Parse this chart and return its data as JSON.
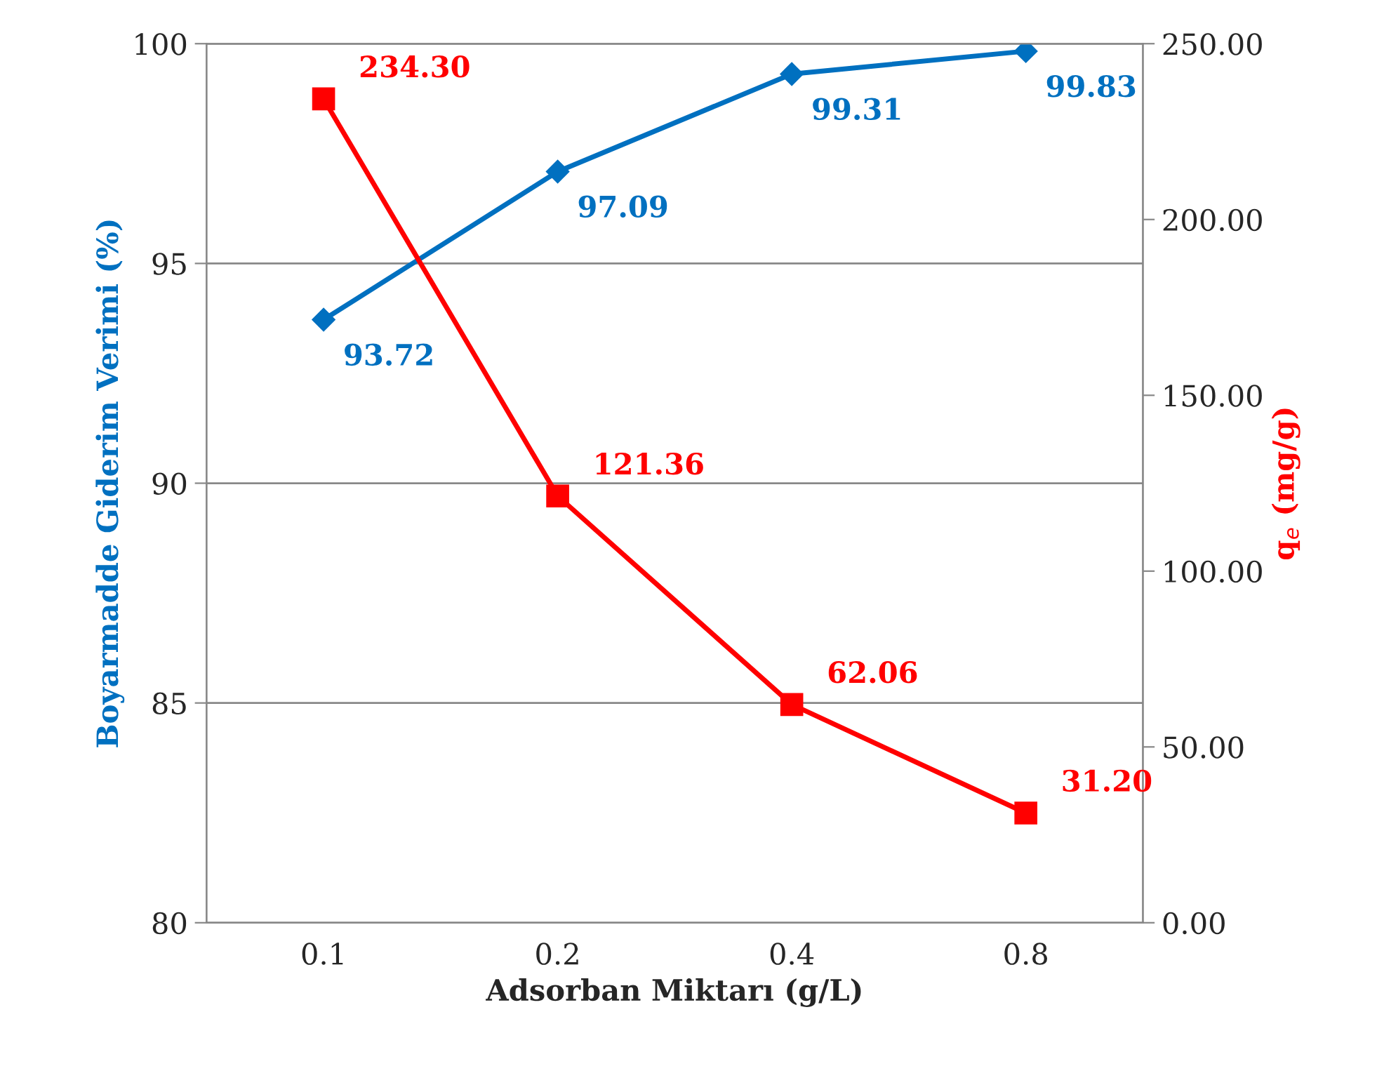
{
  "chart_data": {
    "type": "line",
    "xlabel": "Adsorban Miktarı (g/L)",
    "ylabel": "Boyarmadde Giderim Verimi (%)",
    "y2label": "q$_{e}$ (mg/g)",
    "categories": [
      "0.1",
      "0.2",
      "0.4",
      "0.8"
    ],
    "series": [
      {
        "color": "#0070c0",
        "marker": "diamond",
        "values": [
          93.72,
          97.09,
          99.31,
          99.83
        ],
        "value_labels": [
          "93.72",
          "97.09",
          "99.31",
          "99.83"
        ]
      },
      {
        "color": "#ff0000",
        "marker": "square",
        "axis": "y2",
        "values": [
          234.3,
          121.36,
          62.06,
          31.2
        ],
        "value_labels": [
          "234.30",
          "121.36",
          "62.06",
          "31.20"
        ]
      }
    ],
    "ylim": [
      80,
      100
    ],
    "yticks": [
      80,
      85,
      90,
      95,
      100
    ],
    "y2lim": [
      0,
      250
    ],
    "y2ticks": [
      {
        "value": 0,
        "label": "0.00"
      },
      {
        "value": 50,
        "label": "50.00"
      },
      {
        "value": 100,
        "label": "100.00"
      },
      {
        "value": 150,
        "label": "150.00"
      },
      {
        "value": 200,
        "label": "200.00"
      },
      {
        "value": 250,
        "label": "250.00"
      }
    ],
    "grid": "y",
    "legend": false
  }
}
